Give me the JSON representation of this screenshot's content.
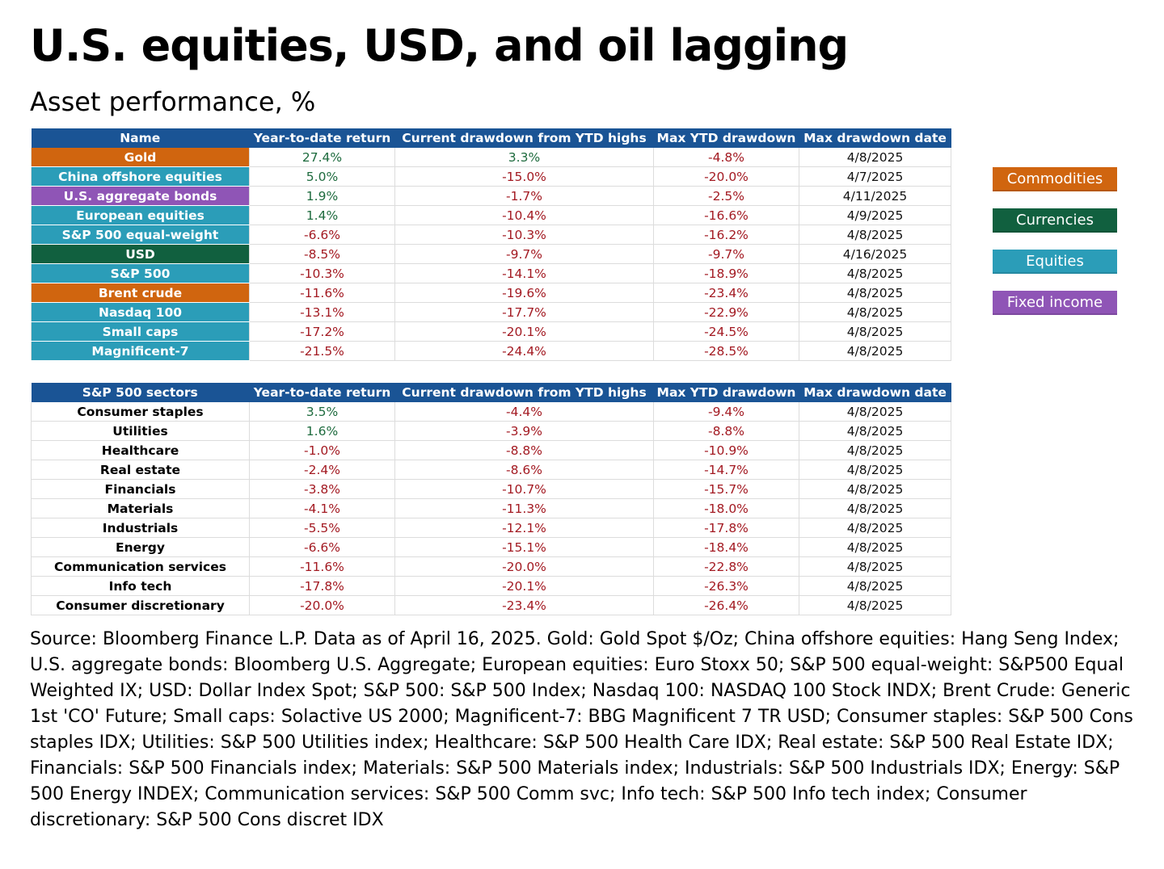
{
  "title": "U.S. equities, USD, and oil lagging",
  "subtitle": "Asset performance, %",
  "colors": {
    "header": "#1a5495",
    "Commodities": "#d0650f",
    "Currencies": "#11603f",
    "Equities": "#2b9db8",
    "Fixed income": "#8f55b6",
    "positive": "#1e6b3e",
    "negative": "#a31a22"
  },
  "legend": [
    "Commodities",
    "Currencies",
    "Equities",
    "Fixed income"
  ],
  "chart_data": [
    {
      "type": "table",
      "columns": [
        "Name",
        "Year-to-date return",
        "Current drawdown from YTD highs",
        "Max YTD drawdown",
        "Max drawdown date"
      ],
      "rows": [
        {
          "name": "Gold",
          "category": "Commodities",
          "ytd": "27.4%",
          "current": "3.3%",
          "max": "-4.8%",
          "date": "4/8/2025"
        },
        {
          "name": "China offshore equities",
          "category": "Equities",
          "ytd": "5.0%",
          "current": "-15.0%",
          "max": "-20.0%",
          "date": "4/7/2025"
        },
        {
          "name": "U.S. aggregate bonds",
          "category": "Fixed income",
          "ytd": "1.9%",
          "current": "-1.7%",
          "max": "-2.5%",
          "date": "4/11/2025"
        },
        {
          "name": "European equities",
          "category": "Equities",
          "ytd": "1.4%",
          "current": "-10.4%",
          "max": "-16.6%",
          "date": "4/9/2025"
        },
        {
          "name": "S&P 500 equal-weight",
          "category": "Equities",
          "ytd": "-6.6%",
          "current": "-10.3%",
          "max": "-16.2%",
          "date": "4/8/2025"
        },
        {
          "name": "USD",
          "category": "Currencies",
          "ytd": "-8.5%",
          "current": "-9.7%",
          "max": "-9.7%",
          "date": "4/16/2025"
        },
        {
          "name": "S&P 500",
          "category": "Equities",
          "ytd": "-10.3%",
          "current": "-14.1%",
          "max": "-18.9%",
          "date": "4/8/2025"
        },
        {
          "name": "Brent crude",
          "category": "Commodities",
          "ytd": "-11.6%",
          "current": "-19.6%",
          "max": "-23.4%",
          "date": "4/8/2025"
        },
        {
          "name": "Nasdaq 100",
          "category": "Equities",
          "ytd": "-13.1%",
          "current": "-17.7%",
          "max": "-22.9%",
          "date": "4/8/2025"
        },
        {
          "name": "Small caps",
          "category": "Equities",
          "ytd": "-17.2%",
          "current": "-20.1%",
          "max": "-24.5%",
          "date": "4/8/2025"
        },
        {
          "name": "Magnificent-7",
          "category": "Equities",
          "ytd": "-21.5%",
          "current": "-24.4%",
          "max": "-28.5%",
          "date": "4/8/2025"
        }
      ]
    },
    {
      "type": "table",
      "columns": [
        "S&P 500 sectors",
        "Year-to-date return",
        "Current drawdown from YTD highs",
        "Max YTD drawdown",
        "Max drawdown date"
      ],
      "rows": [
        {
          "name": "Consumer staples",
          "ytd": "3.5%",
          "current": "-4.4%",
          "max": "-9.4%",
          "date": "4/8/2025"
        },
        {
          "name": "Utilities",
          "ytd": "1.6%",
          "current": "-3.9%",
          "max": "-8.8%",
          "date": "4/8/2025"
        },
        {
          "name": "Healthcare",
          "ytd": "-1.0%",
          "current": "-8.8%",
          "max": "-10.9%",
          "date": "4/8/2025"
        },
        {
          "name": "Real estate",
          "ytd": "-2.4%",
          "current": "-8.6%",
          "max": "-14.7%",
          "date": "4/8/2025"
        },
        {
          "name": "Financials",
          "ytd": "-3.8%",
          "current": "-10.7%",
          "max": "-15.7%",
          "date": "4/8/2025"
        },
        {
          "name": "Materials",
          "ytd": "-4.1%",
          "current": "-11.3%",
          "max": "-18.0%",
          "date": "4/8/2025"
        },
        {
          "name": "Industrials",
          "ytd": "-5.5%",
          "current": "-12.1%",
          "max": "-17.8%",
          "date": "4/8/2025"
        },
        {
          "name": "Energy",
          "ytd": "-6.6%",
          "current": "-15.1%",
          "max": "-18.4%",
          "date": "4/8/2025"
        },
        {
          "name": "Communication services",
          "ytd": "-11.6%",
          "current": "-20.0%",
          "max": "-22.8%",
          "date": "4/8/2025"
        },
        {
          "name": "Info tech",
          "ytd": "-17.8%",
          "current": "-20.1%",
          "max": "-26.3%",
          "date": "4/8/2025"
        },
        {
          "name": "Consumer discretionary",
          "ytd": "-20.0%",
          "current": "-23.4%",
          "max": "-26.4%",
          "date": "4/8/2025"
        }
      ]
    }
  ],
  "source": "Source: Bloomberg Finance L.P. Data as of April 16, 2025. Gold: Gold Spot $/Oz; China offshore equities: Hang Seng Index; U.S. aggregate bonds: Bloomberg U.S. Aggregate; European equities: Euro Stoxx 50; S&P 500 equal-weight: S&P500 Equal Weighted IX; USD: Dollar Index Spot; S&P 500: S&P 500 Index; Nasdaq 100: NASDAQ 100 Stock INDX; Brent Crude: Generic 1st 'CO' Future; Small caps: Solactive US 2000; Magnificent-7: BBG Magnificent 7 TR USD; Consumer staples: S&P 500 Cons staples IDX; Utilities: S&P 500 Utilities index; Healthcare: S&P 500 Health Care IDX; Real estate: S&P 500 Real Estate IDX; Financials: S&P 500 Financials index; Materials: S&P 500 Materials index; Industrials: S&P 500 Industrials IDX; Energy: S&P 500 Energy INDEX; Communication services: S&P 500 Comm svc; Info tech: S&P 500 Info tech index; Consumer discretionary: S&P 500 Cons discret IDX"
}
